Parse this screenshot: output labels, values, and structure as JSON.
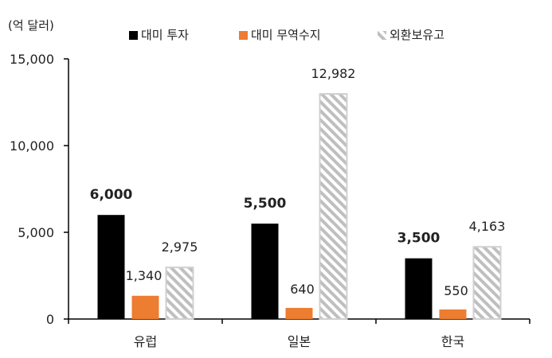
{
  "chart_data": {
    "type": "bar",
    "unit_label": "(억 달러)",
    "categories": [
      "유럽",
      "일본",
      "한국"
    ],
    "series": [
      {
        "name": "대미 투자",
        "values": [
          6000,
          5500,
          3500
        ],
        "labels": [
          "6,000",
          "5,500",
          "3,500"
        ],
        "color": "#000000",
        "pattern": "solid",
        "label_bold": true
      },
      {
        "name": "대미 무역수지",
        "values": [
          1340,
          640,
          550
        ],
        "labels": [
          "1,340",
          "640",
          "550"
        ],
        "color": "#ed7d31",
        "pattern": "solid",
        "label_bold": false
      },
      {
        "name": "외환보유고",
        "values": [
          2975,
          12982,
          4163
        ],
        "labels": [
          "2,975",
          "12,982",
          "4,163"
        ],
        "color": "#bfbfbf",
        "pattern": "hatched",
        "label_bold": false
      }
    ],
    "ylim": [
      0,
      15000
    ],
    "yticks": [
      0,
      5000,
      10000,
      15000
    ],
    "ytick_labels": [
      "0",
      "5,000",
      "10,000",
      "15,000"
    ],
    "grid": false,
    "legend_position": "top"
  }
}
